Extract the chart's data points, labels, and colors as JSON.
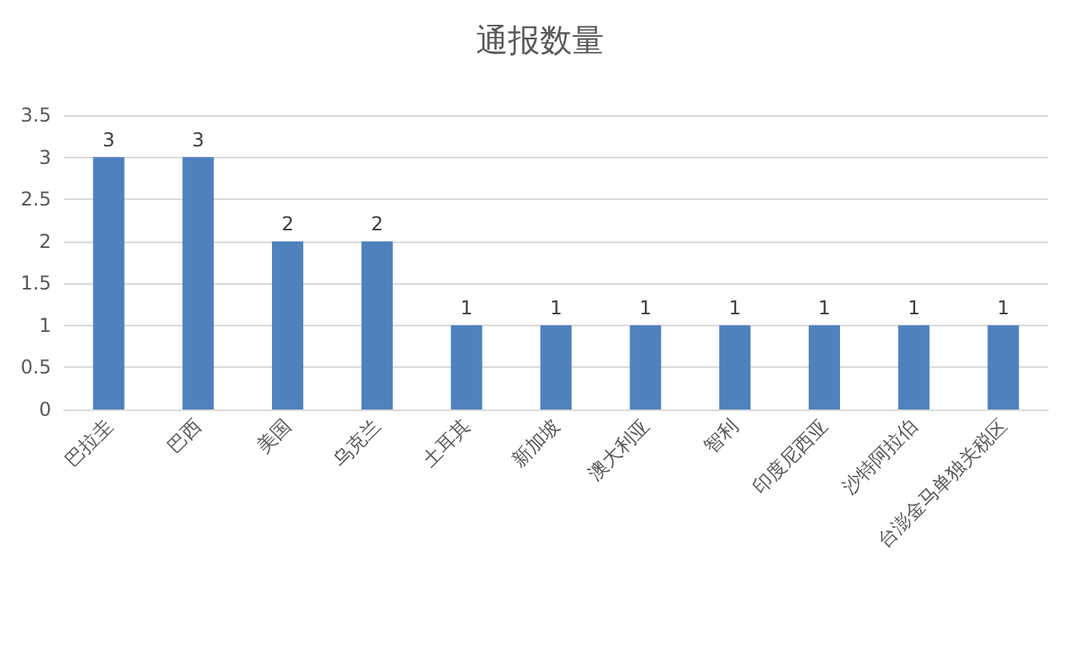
{
  "chart_data": {
    "type": "bar",
    "title": "通报数量",
    "categories": [
      "巴拉圭",
      "巴西",
      "美国",
      "乌克兰",
      "土耳其",
      "新加坡",
      "澳大利亚",
      "智利",
      "印度尼西亚",
      "沙特阿拉伯",
      "台澎金马单独关税区"
    ],
    "values": [
      3,
      3,
      2,
      2,
      1,
      1,
      1,
      1,
      1,
      1,
      1
    ],
    "color": "#4f81bd",
    "ylim": [
      0,
      3.5
    ],
    "yticks": [
      0,
      0.5,
      1,
      1.5,
      2,
      2.5,
      3,
      3.5
    ],
    "grid": "y",
    "data_labels": true
  }
}
